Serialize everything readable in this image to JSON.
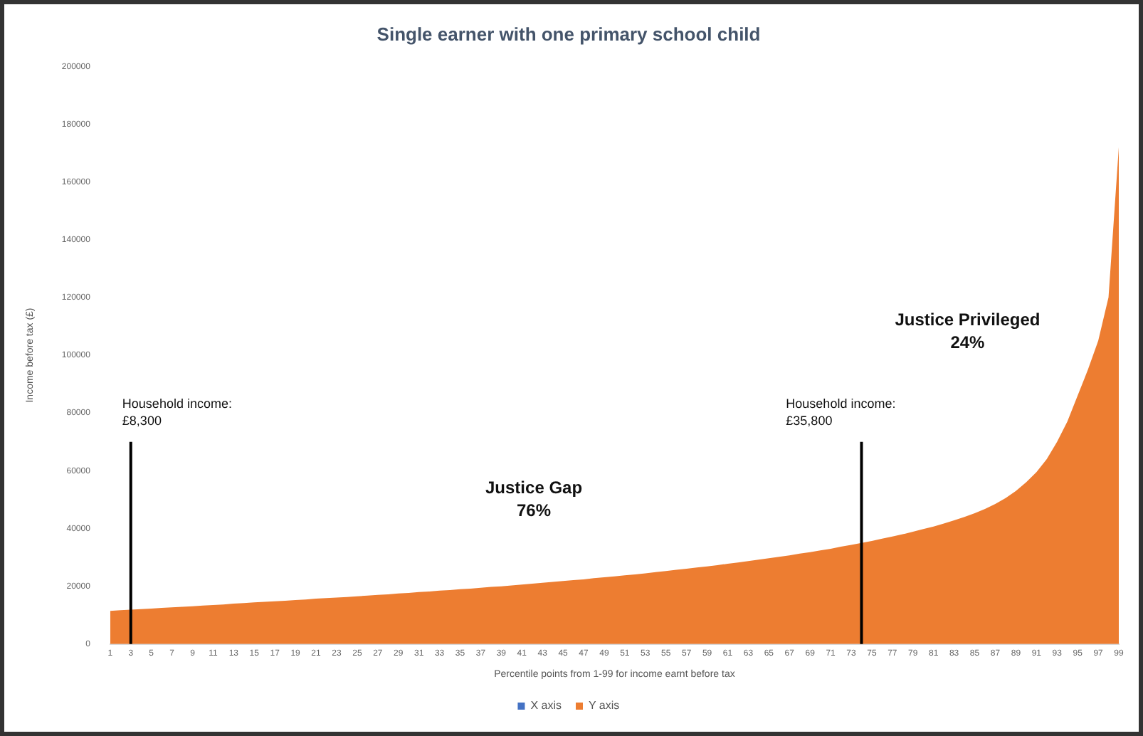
{
  "chart_data": {
    "type": "area",
    "title": "Single earner with one primary school child",
    "xlabel": "Percentile points from 1-99 for income earnt before tax",
    "ylabel": "Income before tax (£)",
    "x": [
      1,
      2,
      3,
      4,
      5,
      6,
      7,
      8,
      9,
      10,
      11,
      12,
      13,
      14,
      15,
      16,
      17,
      18,
      19,
      20,
      21,
      22,
      23,
      24,
      25,
      26,
      27,
      28,
      29,
      30,
      31,
      32,
      33,
      34,
      35,
      36,
      37,
      38,
      39,
      40,
      41,
      42,
      43,
      44,
      45,
      46,
      47,
      48,
      49,
      50,
      51,
      52,
      53,
      54,
      55,
      56,
      57,
      58,
      59,
      60,
      61,
      62,
      63,
      64,
      65,
      66,
      67,
      68,
      69,
      70,
      71,
      72,
      73,
      74,
      75,
      76,
      77,
      78,
      79,
      80,
      81,
      82,
      83,
      84,
      85,
      86,
      87,
      88,
      89,
      90,
      91,
      92,
      93,
      94,
      95,
      96,
      97,
      98,
      99
    ],
    "series": [
      {
        "name": "X axis",
        "color": "#4472c4",
        "values": [
          null,
          null,
          null,
          null,
          null,
          null,
          null,
          null,
          null,
          null,
          null,
          null,
          null,
          null,
          null,
          null,
          null,
          null,
          null,
          null,
          null,
          null,
          null,
          null,
          null,
          null,
          null,
          null,
          null,
          null,
          null,
          null,
          null,
          null,
          null,
          null,
          null,
          null,
          null,
          null,
          null,
          null,
          null,
          null,
          null,
          null,
          null,
          null,
          null,
          null,
          null,
          null,
          null,
          null,
          null,
          null,
          null,
          null,
          null,
          null,
          null,
          null,
          null,
          null,
          null,
          null,
          null,
          null,
          null,
          null,
          null,
          null,
          null,
          null,
          null,
          null,
          null,
          null,
          null,
          null,
          null,
          null,
          null,
          null,
          null,
          null,
          null,
          null,
          null,
          null,
          null,
          null,
          null,
          null,
          null,
          null,
          null,
          null,
          null
        ]
      },
      {
        "name": "Y axis",
        "color": "#ed7d31",
        "values": [
          11500,
          11700,
          11900,
          12100,
          12300,
          12500,
          12700,
          12900,
          13100,
          13300,
          13500,
          13700,
          14000,
          14200,
          14400,
          14600,
          14800,
          15000,
          15200,
          15400,
          15700,
          15900,
          16100,
          16300,
          16500,
          16800,
          17000,
          17200,
          17500,
          17700,
          18000,
          18200,
          18500,
          18700,
          19000,
          19200,
          19500,
          19800,
          20000,
          20300,
          20600,
          20900,
          21200,
          21500,
          21800,
          22100,
          22400,
          22800,
          23100,
          23400,
          23800,
          24100,
          24500,
          24900,
          25300,
          25700,
          26100,
          26500,
          26900,
          27300,
          27800,
          28200,
          28700,
          29200,
          29700,
          30200,
          30700,
          31300,
          31800,
          32400,
          33000,
          33700,
          34300,
          35000,
          35700,
          36500,
          37200,
          38000,
          38900,
          39800,
          40700,
          41700,
          42800,
          44000,
          45300,
          46800,
          48500,
          50500,
          53000,
          56000,
          59500,
          64000,
          70000,
          77000,
          86000,
          95000,
          105000,
          120000,
          172000
        ]
      }
    ],
    "xlim": [
      1,
      99
    ],
    "xticks": [
      1,
      3,
      5,
      7,
      9,
      11,
      13,
      15,
      17,
      19,
      21,
      23,
      25,
      27,
      29,
      31,
      33,
      35,
      37,
      39,
      41,
      43,
      45,
      47,
      49,
      51,
      53,
      55,
      57,
      59,
      61,
      63,
      65,
      67,
      69,
      71,
      73,
      75,
      77,
      79,
      81,
      83,
      85,
      87,
      89,
      91,
      93,
      95,
      97,
      99
    ],
    "ylim": [
      0,
      200000
    ],
    "yticks": [
      0,
      20000,
      40000,
      60000,
      80000,
      100000,
      120000,
      140000,
      160000,
      180000,
      200000
    ],
    "grid": false,
    "legend": "bottom",
    "ref_lines": [
      {
        "axis": "x",
        "value": 3,
        "color": "#000000"
      },
      {
        "axis": "x",
        "value": 74,
        "color": "#000000"
      }
    ],
    "annotations": [
      "Household income:\n£8,300",
      "Justice Gap\n76%",
      "Household income:\n£35,800",
      "Justice Privileged\n24%"
    ]
  }
}
